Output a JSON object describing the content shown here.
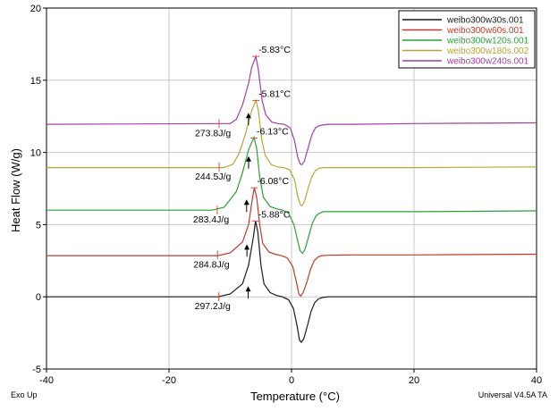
{
  "chart_data": {
    "type": "line",
    "title": "",
    "xlabel": "Temperature (°C)",
    "ylabel": "Heat Flow (W/g)",
    "xlim": [
      -40,
      40
    ],
    "ylim": [
      -5,
      20
    ],
    "xticks": [
      -40,
      -20,
      0,
      20,
      40
    ],
    "yticks": [
      -5,
      0,
      5,
      10,
      15,
      20
    ],
    "grid": true,
    "legend_position": "top-right",
    "footer_left": "Exo Up",
    "footer_right": "Universal V4.5A TA",
    "series": [
      {
        "name": "weibo300w30s.001",
        "color": "#1a1a1a",
        "baseline": 0.0,
        "peak_T": -5.88,
        "peak_h": 5.25,
        "trough_h": -3.15,
        "enthalpy": "297.2J/g",
        "peak_label": "-5.88°C",
        "x": [
          -40,
          -12,
          -10,
          -8,
          -7,
          -6.2,
          -5.88,
          -5.5,
          -5.0,
          -4.5,
          -3.5,
          -2.5,
          -1.5,
          -0.5,
          0.3,
          0.9,
          1.3,
          1.6,
          2.0,
          2.6,
          3.2,
          3.8,
          4.4,
          5.0,
          6.0,
          10,
          20,
          40
        ],
        "y": [
          0.0,
          0.0,
          0.2,
          0.9,
          2.2,
          4.2,
          5.25,
          4.5,
          2.2,
          0.9,
          0.3,
          0.1,
          0.0,
          -0.2,
          -0.8,
          -2.0,
          -3.0,
          -3.15,
          -2.9,
          -2.0,
          -1.0,
          -0.4,
          -0.15,
          -0.05,
          0.0,
          0.0,
          0.0,
          0.0
        ]
      },
      {
        "name": "weibo300w60s.001",
        "color": "#c0392b",
        "baseline": 2.9,
        "peak_T": -6.08,
        "peak_h": 4.65,
        "trough_h": -2.85,
        "enthalpy": "284.8J/g",
        "peak_label": "-6.08°C",
        "x": [
          -40,
          -12,
          -10,
          -8,
          -7,
          -6.4,
          -6.08,
          -5.7,
          -5.2,
          -4.7,
          -3.7,
          -2.7,
          -1.7,
          -0.7,
          0.2,
          0.8,
          1.2,
          1.5,
          1.9,
          2.5,
          3.1,
          3.7,
          4.3,
          4.9,
          5.9,
          10,
          20,
          40
        ],
        "y": [
          2.85,
          2.85,
          3.05,
          3.8,
          5.0,
          6.8,
          7.55,
          6.9,
          5.0,
          3.7,
          3.1,
          2.95,
          2.85,
          2.7,
          2.1,
          1.0,
          0.2,
          0.05,
          0.3,
          1.0,
          1.9,
          2.5,
          2.75,
          2.85,
          2.88,
          2.9,
          2.9,
          2.95
        ]
      },
      {
        "name": "weibo300w120s.001",
        "color": "#2e9e3a",
        "baseline": 6.0,
        "peak_T": -6.13,
        "peak_h": 5.0,
        "trough_h": -3.0,
        "enthalpy": "283.4J/g",
        "peak_label": "-6.13°C",
        "x": [
          -40,
          -13,
          -11,
          -9,
          -8,
          -7,
          -6.13,
          -5.7,
          -5.2,
          -4.6,
          -3.5,
          -2.5,
          -1.5,
          -0.5,
          0.4,
          1.0,
          1.4,
          1.8,
          2.2,
          2.8,
          3.4,
          4.0,
          4.6,
          5.2,
          6.2,
          10,
          20,
          40
        ],
        "y": [
          6.0,
          6.0,
          6.2,
          7.3,
          8.6,
          10.2,
          11.05,
          10.3,
          8.3,
          6.9,
          6.25,
          6.1,
          6.0,
          5.8,
          5.0,
          3.9,
          3.2,
          3.0,
          3.3,
          4.2,
          5.1,
          5.6,
          5.8,
          5.9,
          5.9,
          5.9,
          5.9,
          5.95
        ]
      },
      {
        "name": "weibo300w180s.002",
        "color": "#b5a63a",
        "baseline": 9.0,
        "peak_T": -5.81,
        "peak_h": 4.6,
        "trough_h": -2.7,
        "enthalpy": "244.5J/g",
        "peak_label": "-5.81°C",
        "x": [
          -40,
          -11,
          -9.5,
          -8.5,
          -7.5,
          -6.5,
          -5.81,
          -5.4,
          -4.9,
          -4.3,
          -3.3,
          -2.3,
          -1.3,
          -0.3,
          0.5,
          1.0,
          1.4,
          1.7,
          2.1,
          2.7,
          3.3,
          3.9,
          4.5,
          5.1,
          6.1,
          10,
          20,
          40
        ],
        "y": [
          8.95,
          8.95,
          9.2,
          10.0,
          11.3,
          12.9,
          13.6,
          12.9,
          11.0,
          9.8,
          9.15,
          9.0,
          8.95,
          8.8,
          8.1,
          7.0,
          6.4,
          6.3,
          6.6,
          7.5,
          8.3,
          8.75,
          8.9,
          8.95,
          8.95,
          8.95,
          8.95,
          9.0
        ]
      },
      {
        "name": "weibo300w240s.001",
        "color": "#a040a0",
        "baseline": 12.0,
        "peak_T": -5.83,
        "peak_h": 4.65,
        "trough_h": -2.85,
        "enthalpy": "273.8J/g",
        "peak_label": "-5.83°C",
        "x": [
          -40,
          -10,
          -9,
          -8,
          -7,
          -6.5,
          -5.83,
          -5.4,
          -4.8,
          -4.2,
          -3.2,
          -2.2,
          -1.2,
          -0.2,
          0.5,
          1.0,
          1.4,
          1.7,
          2.1,
          2.7,
          3.3,
          3.9,
          4.5,
          5.1,
          6.1,
          10,
          20,
          40
        ],
        "y": [
          11.95,
          12.0,
          12.3,
          13.3,
          14.8,
          15.9,
          16.65,
          15.7,
          13.6,
          12.6,
          12.1,
          12.0,
          11.95,
          11.7,
          10.8,
          9.7,
          9.2,
          9.15,
          9.4,
          10.3,
          11.2,
          11.7,
          11.85,
          11.9,
          11.95,
          11.95,
          12.0,
          12.05
        ]
      }
    ]
  }
}
